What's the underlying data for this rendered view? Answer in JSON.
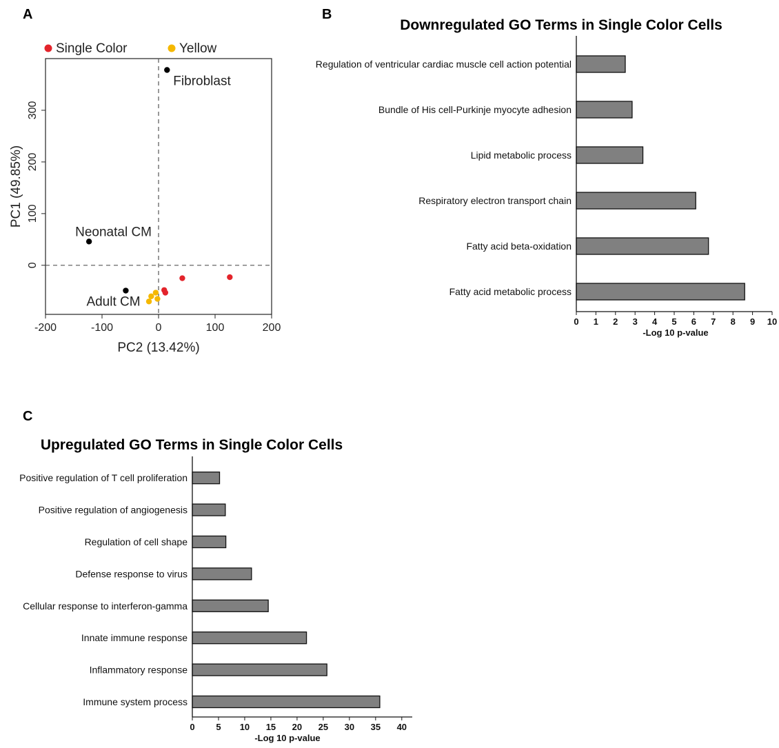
{
  "panels": {
    "a": "A",
    "b": "B",
    "c": "C"
  },
  "chart_data": [
    {
      "type": "scatter",
      "panel": "A",
      "xlabel": "PC2 (13.42%)",
      "ylabel": "PC1 (49.85%)",
      "xlim": [
        -200,
        200
      ],
      "ylim": [
        -95,
        400
      ],
      "xticks": [
        -200,
        -100,
        0,
        100,
        200
      ],
      "yticks": [
        0,
        100,
        200,
        300
      ],
      "legend": {
        "placement": "top",
        "entries": [
          {
            "label": "Single Color",
            "color": "#e3242b"
          },
          {
            "label": "Yellow",
            "color": "#f5b800"
          }
        ]
      },
      "series": [
        {
          "name": "Single Color",
          "color": "#e3242b",
          "points": [
            [
              10,
              -48
            ],
            [
              12,
              -53
            ],
            [
              42,
              -25
            ],
            [
              126,
              -23
            ]
          ]
        },
        {
          "name": "Yellow",
          "color": "#f5b800",
          "points": [
            [
              -5,
              -53
            ],
            [
              -13,
              -60
            ],
            [
              -2,
              -65
            ],
            [
              -17,
              -70
            ]
          ]
        },
        {
          "name": "",
          "color": "#000000",
          "points": [
            {
              "x": 15,
              "y": 378,
              "label": "Fibroblast"
            },
            {
              "x": -123,
              "y": 46,
              "label": "Neonatal CM"
            },
            {
              "x": -58,
              "y": -49,
              "label": "Adult CM"
            }
          ]
        }
      ],
      "reference_lines": {
        "x": 0,
        "y": 0,
        "style": "dashed"
      }
    },
    {
      "type": "bar",
      "panel": "B",
      "orientation": "horizontal",
      "title": "Downregulated GO Terms in Single Color Cells",
      "xlabel": "-Log 10 p-value",
      "xlim": [
        0,
        10
      ],
      "xticks": [
        0,
        1,
        2,
        3,
        4,
        5,
        6,
        7,
        8,
        9,
        10
      ],
      "categories": [
        "Regulation of ventricular cardiac muscle cell action potential",
        "Bundle of His cell-Purkinje myocyte adhesion",
        "Lipid metabolic process",
        "Respiratory electron transport chain",
        "Fatty acid beta-oxidation",
        "Fatty acid metabolic process"
      ],
      "values": [
        2.5,
        2.85,
        3.4,
        6.1,
        6.75,
        8.6
      ],
      "bar_color": "#808080"
    },
    {
      "type": "bar",
      "panel": "C",
      "orientation": "horizontal",
      "title": "Upregulated GO Terms in Single Color Cells",
      "xlabel": "-Log 10 p-value",
      "xlim": [
        0,
        42
      ],
      "xticks": [
        0,
        5,
        10,
        15,
        20,
        25,
        30,
        35,
        40
      ],
      "categories": [
        "Positive regulation of T cell proliferation",
        "Positive regulation of angiogenesis",
        "Regulation of cell shape",
        "Defense response to virus",
        "Cellular response to interferon-gamma",
        "Innate immune response",
        "Inflammatory response",
        "Immune system process"
      ],
      "values": [
        5.2,
        6.3,
        6.4,
        11.3,
        14.5,
        21.8,
        25.7,
        35.8
      ],
      "bar_color": "#808080"
    }
  ]
}
